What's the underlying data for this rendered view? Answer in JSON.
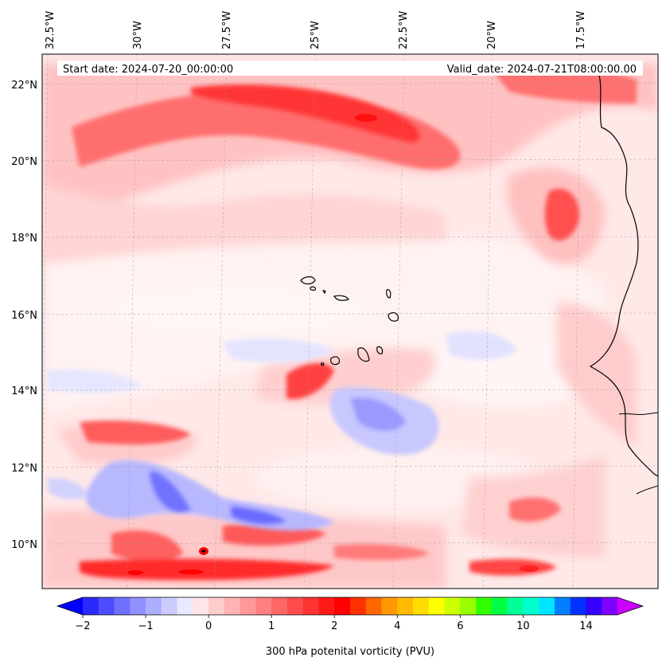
{
  "header": {
    "start_date": "Start date: 2024-07-20_00:00:00",
    "valid_date": "Valid_date: 2024-07-21T08:00:00.00"
  },
  "axes": {
    "lon_ticks": [
      "32.5°W",
      "30°W",
      "27.5°W",
      "25°W",
      "22.5°W",
      "20°W",
      "17.5°W"
    ],
    "lat_ticks": [
      "22°N",
      "20°N",
      "18°N",
      "16°N",
      "14°N",
      "12°N",
      "10°N"
    ]
  },
  "colorbar": {
    "label": "300 hPa potenital vorticity (PVU)",
    "tick_labels": [
      "−2",
      "−1",
      "0",
      "1",
      "2",
      "4",
      "6",
      "10",
      "14"
    ],
    "colors": [
      "#0000ff",
      "#2a2aff",
      "#4d4dff",
      "#7070ff",
      "#9090ff",
      "#aeaeff",
      "#ccccff",
      "#e9e9ff",
      "#ffe6e6",
      "#ffcccc",
      "#ffb3b3",
      "#ff9999",
      "#ff8080",
      "#ff6666",
      "#ff4d4d",
      "#ff3333",
      "#ff1a1a",
      "#ff0000",
      "#ff3300",
      "#ff6600",
      "#ff9900",
      "#ffbb00",
      "#ffdd00",
      "#ffff00",
      "#ccff00",
      "#99ff00",
      "#33ff00",
      "#00ff44",
      "#00ff99",
      "#00ffcc",
      "#00e5ff",
      "#0080ff",
      "#0033ff",
      "#3300ff",
      "#8000ff",
      "#cc00ff"
    ]
  }
}
